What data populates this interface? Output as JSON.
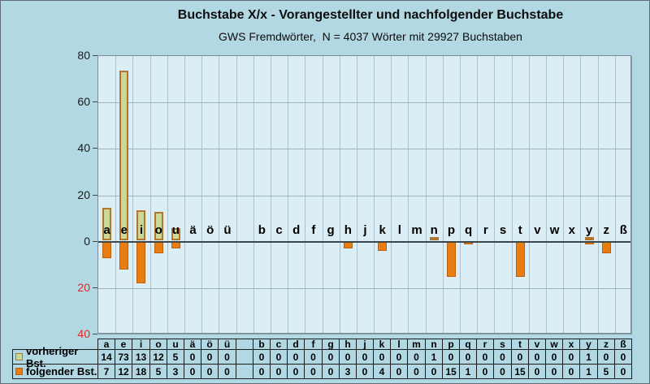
{
  "title": "Buchstabe X/x - Vorangestellter und nachfolgender Buchstabe",
  "subtitle": "GWS Fremdwörter,  N = 4037 Wörter mit 29927 Buchstaben",
  "colors": {
    "page_background": "#b1d8e3",
    "plot_background": "#dceef5",
    "negative_tick_label": "#e12823",
    "zero_line": "#3a454d"
  },
  "chart_data": {
    "type": "bar",
    "orientation": "diverging-vertical",
    "title": "Buchstabe X/x - Vorangestellter und nachfolgender Buchstabe",
    "subtitle": "GWS Fremdwörter,  N = 4037 Wörter mit 29927 Buchstaben",
    "categories": [
      "a",
      "e",
      "i",
      "o",
      "u",
      "ä",
      "ö",
      "ü",
      "",
      "b",
      "c",
      "d",
      "f",
      "g",
      "h",
      "j",
      "k",
      "l",
      "m",
      "n",
      "p",
      "q",
      "r",
      "s",
      "t",
      "v",
      "w",
      "x",
      "y",
      "z",
      "ß"
    ],
    "series": [
      {
        "name": "vorheriger Bst.",
        "direction": "up",
        "fill": "#ccd898",
        "border": "#b2752d",
        "values": [
          14,
          73,
          13,
          12,
          5,
          0,
          0,
          0,
          null,
          0,
          0,
          0,
          0,
          0,
          0,
          0,
          0,
          0,
          0,
          1,
          0,
          0,
          0,
          0,
          0,
          0,
          0,
          0,
          1,
          0,
          0
        ]
      },
      {
        "name": "folgender Bst.",
        "direction": "down",
        "fill": "#e87d12",
        "border": "#bb5f08",
        "values": [
          7,
          12,
          18,
          5,
          3,
          0,
          0,
          0,
          null,
          0,
          0,
          0,
          0,
          0,
          3,
          0,
          4,
          0,
          0,
          0,
          15,
          1,
          0,
          0,
          15,
          0,
          0,
          0,
          1,
          5,
          0
        ]
      }
    ],
    "ylim": [
      -40,
      80
    ],
    "yticks": [
      80,
      60,
      40,
      20,
      0,
      -20,
      -40
    ],
    "ytick_labels": [
      "80",
      "60",
      "40",
      "20",
      "0",
      "20",
      "40"
    ],
    "negative_labels_red": true,
    "grid": true,
    "legend_position": "table-left-column"
  }
}
